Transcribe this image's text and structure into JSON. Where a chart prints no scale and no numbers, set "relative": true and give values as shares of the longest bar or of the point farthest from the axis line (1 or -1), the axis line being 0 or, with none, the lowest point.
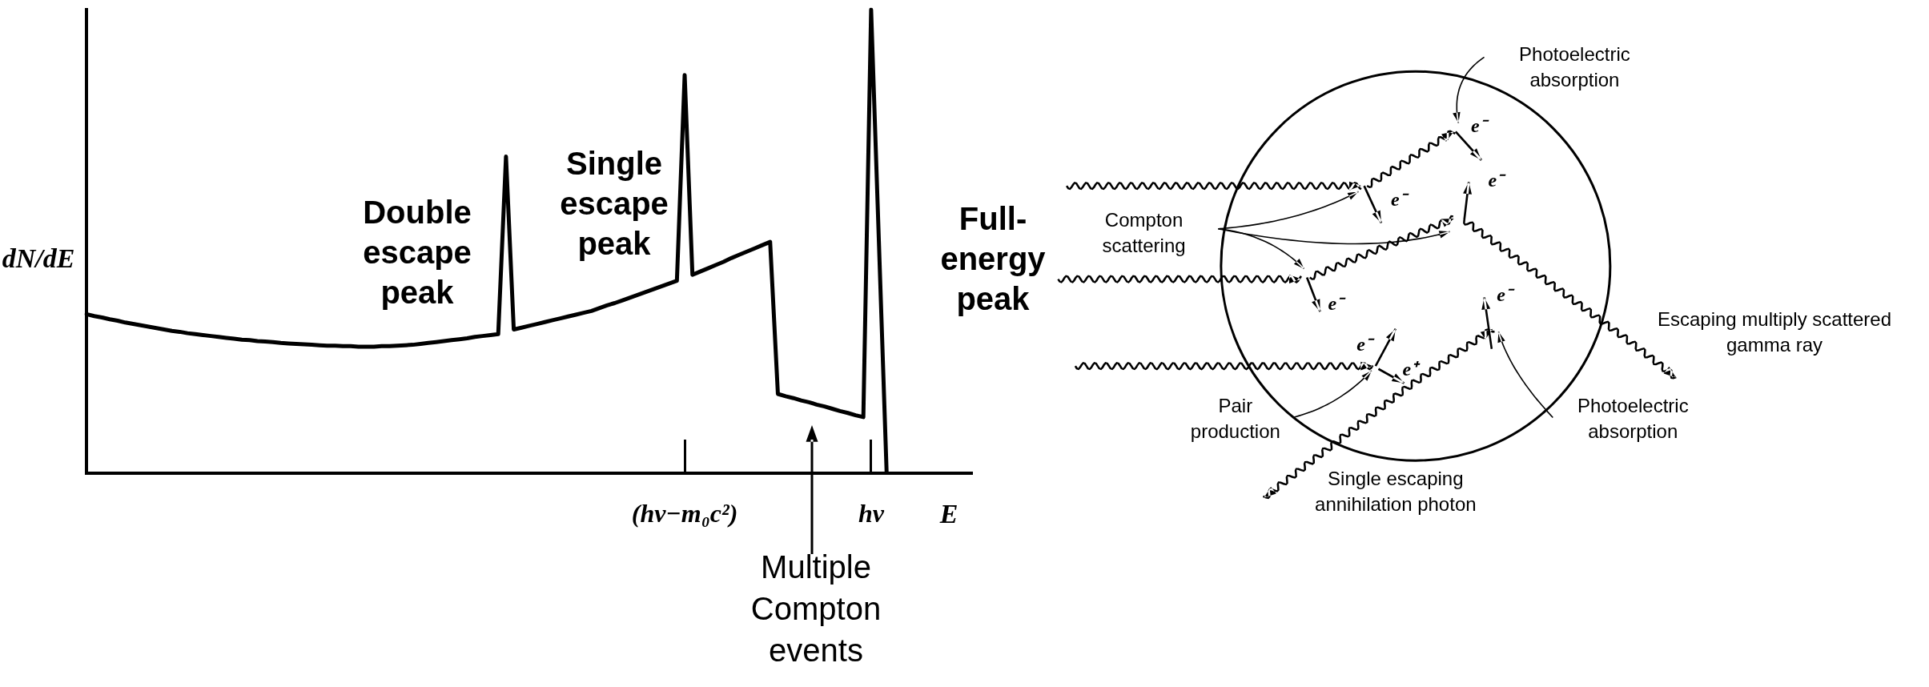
{
  "chart_data": [
    {
      "type": "line",
      "relative": true,
      "ylabel": "dN/dE",
      "xlabel": "E",
      "marker": "none",
      "categories": [
        null,
        null,
        null,
        null,
        null,
        null,
        null,
        null,
        null,
        null,
        null,
        null,
        null,
        null,
        null,
        null,
        null,
        null,
        null,
        null,
        null,
        null,
        null,
        null,
        null,
        null,
        null,
        null,
        null,
        null,
        null,
        null,
        null,
        null,
        null,
        null,
        null,
        null,
        null,
        null,
        null,
        null,
        null,
        null,
        null,
        null,
        null,
        null,
        null,
        null,
        null,
        null,
        null,
        null,
        null,
        null,
        null,
        null,
        null,
        null,
        null,
        null,
        null,
        null,
        null,
        null,
        null,
        null,
        null,
        null,
        null,
        null,
        null,
        null,
        null,
        null,
        null,
        "(hν−m₀c²)",
        null,
        null,
        null,
        null,
        null,
        null,
        null,
        null,
        null,
        null,
        null,
        null,
        null,
        null,
        null,
        null,
        null,
        null,
        null,
        null,
        null,
        null,
        null,
        "hν",
        null,
        null,
        null,
        null,
        null,
        null,
        null,
        null,
        null,
        null,
        null,
        null,
        null
      ],
      "series": [
        {
          "color": "#000000",
          "values": [
            0.343,
            0.339,
            0.336,
            0.332,
            0.329,
            0.325,
            0.322,
            0.319,
            0.316,
            0.313,
            0.31,
            0.307,
            0.305,
            0.302,
            0.3,
            0.298,
            0.296,
            0.294,
            0.292,
            0.29,
            0.288,
            0.287,
            0.285,
            0.284,
            0.283,
            0.281,
            0.28,
            0.279,
            0.278,
            0.277,
            0.276,
            0.275,
            0.275,
            0.274,
            0.274,
            0.273,
            0.273,
            0.273,
            0.274,
            0.274,
            0.275,
            0.276,
            0.277,
            0.279,
            0.281,
            0.283,
            0.285,
            0.287,
            0.289,
            0.291,
            0.294,
            0.296,
            0.298,
            0.3,
            0.683,
            0.31,
            0.314,
            0.318,
            0.322,
            0.326,
            0.33,
            0.334,
            0.338,
            0.342,
            0.346,
            0.35,
            0.356,
            0.362,
            0.367,
            0.373,
            0.379,
            0.385,
            0.391,
            0.397,
            0.403,
            0.409,
            0.415,
            0.859,
            0.428,
            0.435,
            0.442,
            0.449,
            0.456,
            0.464,
            0.471,
            0.478,
            0.485,
            0.492,
            0.499,
            0.171,
            0.166,
            0.162,
            0.157,
            0.153,
            0.148,
            0.144,
            0.139,
            0.134,
            0.13,
            0.125,
            0.121,
            1,
            0.5,
            0,
            null,
            null,
            null,
            null,
            null,
            null,
            null,
            null,
            null,
            null,
            null
          ]
        }
      ],
      "annotations": [
        "Double escape peak",
        "Single escape peak",
        "Full-energy peak",
        "Multiple Compton events"
      ]
    },
    {
      "type": "other",
      "annotations": [
        "Photoelectric absorption",
        "e⁻",
        "e⁻",
        "e⁻",
        "e⁻",
        "e⁻",
        "e⁻",
        "e⁺",
        "Compton scattering",
        "Escaping multiply scattered gamma ray",
        "Pair production",
        "Photoelectric absorption",
        "Single escaping annihilation photon"
      ]
    }
  ]
}
